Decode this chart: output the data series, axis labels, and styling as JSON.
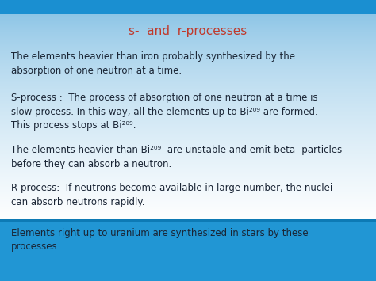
{
  "title": "s-  and  r-processes",
  "title_color": "#c0392b",
  "title_fontsize": 11,
  "body_fontsize": 8.5,
  "footer_fontsize": 8.5,
  "header_bar_color": "#1a8fd1",
  "footer_bar_color": "#2196d4",
  "text_color_body": "#1a2535",
  "text_color_footer": "#1a2535",
  "paragraph1": "The elements heavier than iron probably synthesized by the\nabsorption of one neutron at a time.",
  "paragraph2": "S-process :  The process of absorption of one neutron at a time is\nslow process. In this way, all the elements up to Bi²⁰⁹ are formed.\nThis process stops at Bi²⁰⁹.",
  "paragraph3": "The elements heavier than Bi²⁰⁹  are unstable and emit beta- particles\nbefore they can absorb a neutron.",
  "paragraph4": "R-process:  If neutrons become available in large number, the nuclei\ncan absorb neutrons rapidly.",
  "footer_text": "Elements right up to uranium are synthesized in stars by these\nprocesses."
}
